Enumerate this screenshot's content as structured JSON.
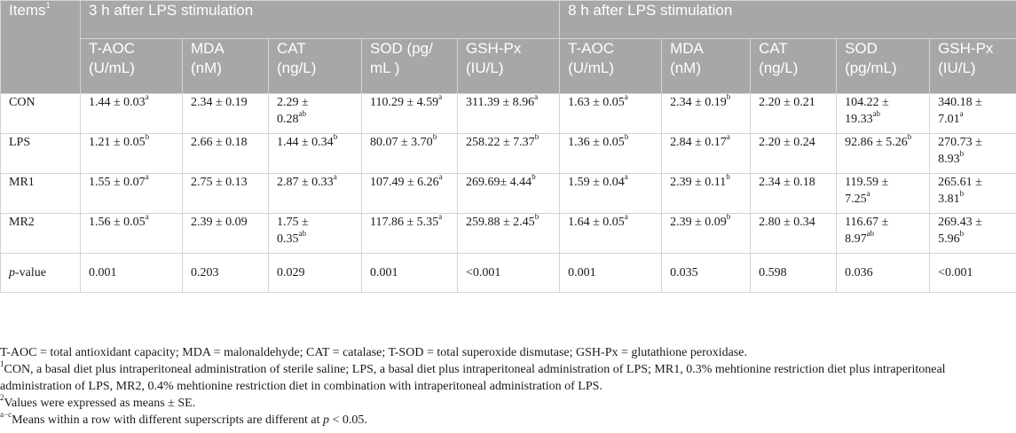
{
  "header": {
    "items_label": "Items",
    "items_sup": "1",
    "group_3h": "3 h after LPS stimulation",
    "group_8h": "8 h after LPS stimulation",
    "columns": [
      {
        "l1": "T-AOC",
        "l2": "(U/mL)"
      },
      {
        "l1": "MDA",
        "l2": "(nM)"
      },
      {
        "l1": "CAT",
        "l2": "(ng/L)"
      },
      {
        "l1": "SOD (pg/",
        "l2": "mL )"
      },
      {
        "l1": "GSH-Px",
        "l2": "(IU/L)"
      },
      {
        "l1": "T-AOC",
        "l2": "(U/mL)"
      },
      {
        "l1": "MDA",
        "l2": "(nM)"
      },
      {
        "l1": "CAT",
        "l2": "(ng/L)"
      },
      {
        "l1": "SOD",
        "l2": "(pg/mL)"
      },
      {
        "l1": "GSH-Px",
        "l2": "(IU/L)"
      }
    ]
  },
  "rows": [
    {
      "label": "CON",
      "cells": [
        {
          "a": "1.44 ± 0.03",
          "as": "a",
          "b": "",
          "bs": ""
        },
        {
          "a": "2.34 ± 0.19",
          "as": "",
          "b": "",
          "bs": ""
        },
        {
          "a": "2.29 ±",
          "as": "",
          "b": "0.28",
          "bs": "ab"
        },
        {
          "a": "110.29 ± 4.59",
          "as": "a",
          "b": "",
          "bs": ""
        },
        {
          "a": "311.39 ± 8.96",
          "as": "a",
          "b": "",
          "bs": ""
        },
        {
          "a": "1.63 ± 0.05",
          "as": "a",
          "b": "",
          "bs": ""
        },
        {
          "a": "2.34 ± 0.19",
          "as": "b",
          "b": "",
          "bs": ""
        },
        {
          "a": "2.20 ± 0.21",
          "as": "",
          "b": "",
          "bs": ""
        },
        {
          "a": "104.22 ±",
          "as": "",
          "b": "19.33",
          "bs": "ab"
        },
        {
          "a": "340.18 ±",
          "as": "",
          "b": "7.01",
          "bs": "a"
        }
      ]
    },
    {
      "label": "LPS",
      "cells": [
        {
          "a": "1.21 ± 0.05",
          "as": "b",
          "b": "",
          "bs": ""
        },
        {
          "a": "2.66 ± 0.18",
          "as": "",
          "b": "",
          "bs": ""
        },
        {
          "a": "1.44 ± 0.34",
          "as": "b",
          "b": "",
          "bs": ""
        },
        {
          "a": "80.07 ± 3.70",
          "as": "b",
          "b": "",
          "bs": ""
        },
        {
          "a": "258.22 ± 7.37",
          "as": "b",
          "b": "",
          "bs": ""
        },
        {
          "a": "1.36 ± 0.05",
          "as": "b",
          "b": "",
          "bs": ""
        },
        {
          "a": "2.84 ± 0.17",
          "as": "a",
          "b": "",
          "bs": ""
        },
        {
          "a": "2.20 ± 0.24",
          "as": "",
          "b": "",
          "bs": ""
        },
        {
          "a": "92.86 ± 5.26",
          "as": "b",
          "b": "",
          "bs": ""
        },
        {
          "a": "270.73 ±",
          "as": "",
          "b": "8.93",
          "bs": "b"
        }
      ]
    },
    {
      "label": "MR1",
      "cells": [
        {
          "a": "1.55 ± 0.07",
          "as": "a",
          "b": "",
          "bs": ""
        },
        {
          "a": "2.75 ± 0.13",
          "as": "",
          "b": "",
          "bs": ""
        },
        {
          "a": "2.87 ± 0.33",
          "as": "a",
          "b": "",
          "bs": ""
        },
        {
          "a": "107.49 ± 6.26",
          "as": "a",
          "b": "",
          "bs": ""
        },
        {
          "a": "269.69± 4.44",
          "as": "b",
          "b": "",
          "bs": ""
        },
        {
          "a": "1.59 ± 0.04",
          "as": "a",
          "b": "",
          "bs": ""
        },
        {
          "a": "2.39 ± 0.11",
          "as": "b",
          "b": "",
          "bs": ""
        },
        {
          "a": "2.34 ± 0.18",
          "as": "",
          "b": "",
          "bs": ""
        },
        {
          "a": "119.59 ±",
          "as": "",
          "b": "7.25",
          "bs": "a"
        },
        {
          "a": "265.61 ±",
          "as": "",
          "b": "3.81",
          "bs": "b"
        }
      ]
    },
    {
      "label": "MR2",
      "cells": [
        {
          "a": "1.56 ± 0.05",
          "as": "a",
          "b": "",
          "bs": ""
        },
        {
          "a": "2.39 ± 0.09",
          "as": "",
          "b": "",
          "bs": ""
        },
        {
          "a": "1.75 ±",
          "as": "",
          "b": "0.35",
          "bs": "ab"
        },
        {
          "a": "117.86 ± 5.35",
          "as": "a",
          "b": "",
          "bs": ""
        },
        {
          "a": "259.88 ± 2.45",
          "as": "b",
          "b": "",
          "bs": ""
        },
        {
          "a": "1.64 ± 0.05",
          "as": "a",
          "b": "",
          "bs": ""
        },
        {
          "a": "2.39 ± 0.09",
          "as": "b",
          "b": "",
          "bs": ""
        },
        {
          "a": "2.80 ± 0.34",
          "as": "",
          "b": "",
          "bs": ""
        },
        {
          "a": "116.67 ±",
          "as": "",
          "b": "8.97",
          "bs": "ab"
        },
        {
          "a": "269.43 ±",
          "as": "",
          "b": "5.96",
          "bs": "b"
        }
      ]
    }
  ],
  "pvalue_row": {
    "label_italic": "p",
    "label_rest": "-value",
    "cells": [
      "0.001",
      "0.203",
      "0.029",
      "0.001",
      "<0.001",
      "0.001",
      "0.035",
      "0.598",
      "0.036",
      "<0.001"
    ]
  },
  "notes": {
    "abbreviations": "T-AOC = total antioxidant capacity; MDA = malonaldehyde; CAT = catalase; T-SOD = total superoxide dismutase; GSH-Px = glutathione peroxidase.",
    "note1_sup": "1",
    "note1": "CON, a basal diet plus intraperitoneal administration of sterile saline; LPS, a basal diet plus intraperitoneal administration of LPS; MR1, 0.3% mehtionine restriction diet plus intraperitoneal administration of LPS, MR2, 0.4% mehtionine restriction diet in combination with intraperitoneal administration of LPS.",
    "note2_sup": "2",
    "note2": "Values were expressed as means ± SE.",
    "note3_sup": "a−c",
    "note3_pre": "Means within a row with different superscripts are different at ",
    "note3_p": "p",
    "note3_post": " < 0.05."
  }
}
